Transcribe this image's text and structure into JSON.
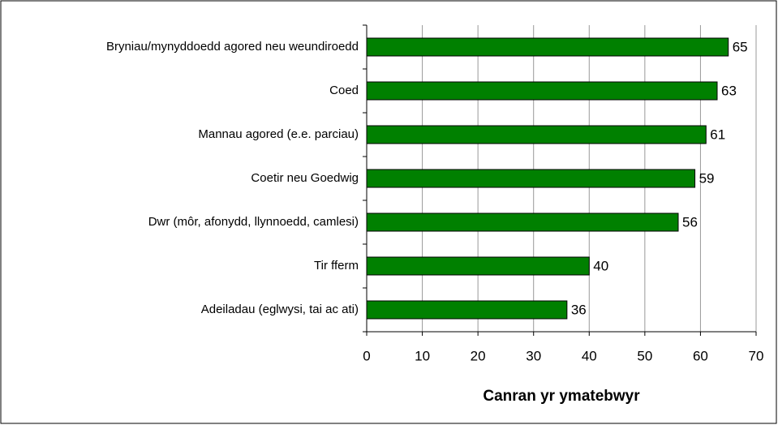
{
  "chart_data": {
    "type": "bar",
    "orientation": "horizontal",
    "x_label": "Canran yr ymatebwyr",
    "categories": [
      "Bryniau/mynyddoedd agored neu weundiroedd",
      "Coed",
      "Mannau agored (e.e. parciau)",
      "Coetir neu Goedwig",
      "Dwr (môr, afonydd, llynnoedd, camlesi)",
      "Tir fferm",
      "Adeiladau (eglwysi, tai ac ati)"
    ],
    "values": [
      65,
      63,
      61,
      59,
      56,
      40,
      36
    ],
    "color": "#008000",
    "xlim": [
      0,
      70
    ],
    "xticks": [
      0,
      10,
      20,
      30,
      40,
      50,
      60,
      70
    ],
    "grid": true
  }
}
